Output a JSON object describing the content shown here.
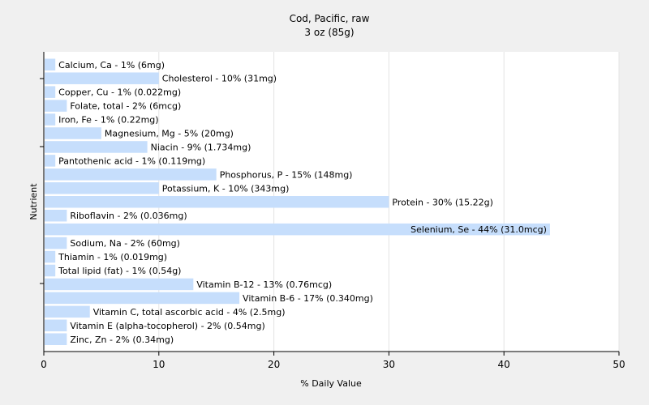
{
  "chart_data": {
    "type": "bar",
    "orientation": "horizontal",
    "title": "Cod, Pacific, raw",
    "subtitle": "3 oz (85g)",
    "xlabel": "% Daily Value",
    "ylabel": "Nutrient",
    "xlim": [
      0,
      50
    ],
    "xticks": [
      "0",
      "10",
      "20",
      "30",
      "40",
      "50"
    ],
    "grid": true,
    "bar_color": "#c6defc",
    "categories": [
      "Calcium, Ca",
      "Cholesterol",
      "Copper, Cu",
      "Folate, total",
      "Iron, Fe",
      "Magnesium, Mg",
      "Niacin",
      "Pantothenic acid",
      "Phosphorus, P",
      "Potassium, K",
      "Protein",
      "Riboflavin",
      "Selenium, Se",
      "Sodium, Na",
      "Thiamin",
      "Total lipid (fat)",
      "Vitamin B-12",
      "Vitamin B-6",
      "Vitamin C, total ascorbic acid",
      "Vitamin E (alpha-tocopherol)",
      "Zinc, Zn"
    ],
    "values": [
      1,
      10,
      1,
      2,
      1,
      5,
      9,
      1,
      15,
      10,
      30,
      2,
      44,
      2,
      1,
      1,
      13,
      17,
      4,
      2,
      2
    ],
    "labels": [
      "Calcium, Ca - 1% (6mg)",
      "Cholesterol - 10% (31mg)",
      "Copper, Cu - 1% (0.022mg)",
      "Folate, total - 2% (6mcg)",
      "Iron, Fe - 1% (0.22mg)",
      "Magnesium, Mg - 5% (20mg)",
      "Niacin - 9% (1.734mg)",
      "Pantothenic acid - 1% (0.119mg)",
      "Phosphorus, P - 15% (148mg)",
      "Potassium, K - 10% (343mg)",
      "Protein - 30% (15.22g)",
      "Riboflavin - 2% (0.036mg)",
      "Selenium, Se - 44% (31.0mcg)",
      "Sodium, Na - 2% (60mg)",
      "Thiamin - 1% (0.019mg)",
      "Total lipid (fat) - 1% (0.54g)",
      "Vitamin B-12 - 13% (0.76mcg)",
      "Vitamin B-6 - 17% (0.340mg)",
      "Vitamin C, total ascorbic acid - 4% (2.5mg)",
      "Vitamin E (alpha-tocopherol) - 2% (0.54mg)",
      "Zinc, Zn - 2% (0.34mg)"
    ]
  }
}
